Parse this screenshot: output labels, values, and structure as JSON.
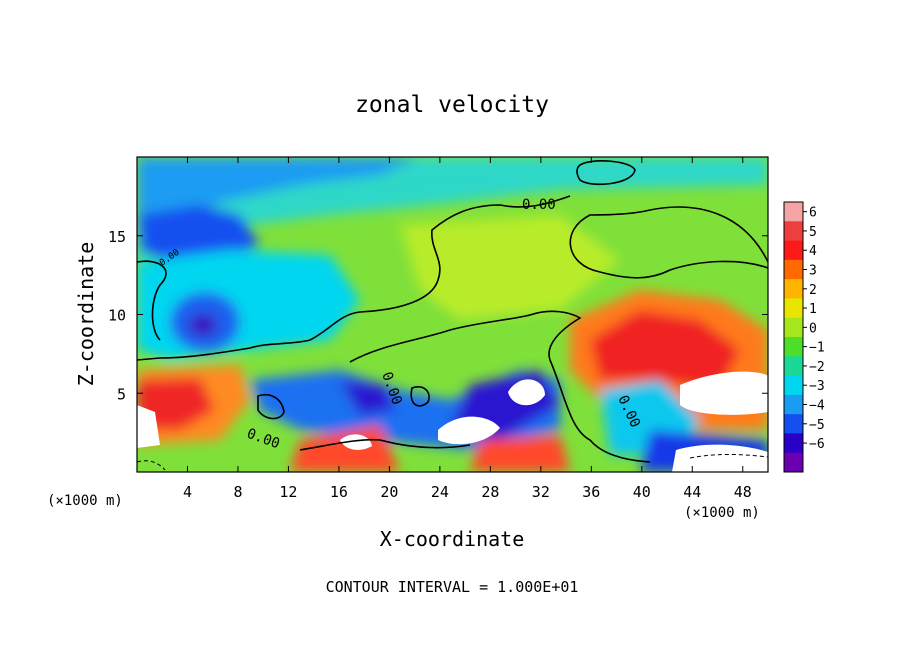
{
  "chart_data": {
    "type": "heatmap",
    "title": "zonal velocity",
    "xlabel": "X-coordinate",
    "ylabel": "Z-coordinate",
    "x_unit_left": "(×1000 m)",
    "x_unit_right": "(×1000 m)",
    "footer": "CONTOUR INTERVAL = 1.000E+01",
    "xlim": [
      0,
      50
    ],
    "ylim": [
      0,
      20
    ],
    "x_ticks": [
      "4",
      "8",
      "12",
      "16",
      "20",
      "24",
      "28",
      "32",
      "36",
      "40",
      "44",
      "48"
    ],
    "y_ticks": [
      "5",
      "10",
      "15"
    ],
    "contour_labels": [
      "0.00",
      "0.00",
      "0.00",
      "0.00",
      "0.00"
    ],
    "colorbar": {
      "labels": [
        "6",
        "5",
        "4",
        "3",
        "2",
        "1",
        "0",
        "−1",
        "−2",
        "−3",
        "−4",
        "−5",
        "−6"
      ],
      "colors": [
        "#f4a4a4",
        "#ee3f3f",
        "#ff1a1a",
        "#ff6a00",
        "#ffb400",
        "#e8e600",
        "#a6e61e",
        "#4dde2a",
        "#1bd896",
        "#00d6f0",
        "#1a9cf2",
        "#1450f0",
        "#2a00c8",
        "#6a00b0"
      ]
    }
  }
}
